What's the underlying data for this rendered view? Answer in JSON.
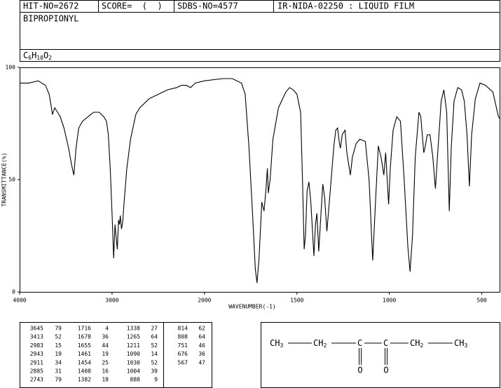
{
  "header": {
    "hit_no": "HIT-NO=2672",
    "score": "SCORE=  (  )",
    "sdbs_no": "SDBS-NO=4577",
    "method": "IR-NIDA-02250 : LIQUID FILM",
    "name": "BIPROPIONYL",
    "formula": [
      "C",
      "6",
      "H",
      "10",
      "O",
      "2"
    ]
  },
  "chart_data": {
    "type": "line",
    "xlabel": "WAVENUMBER(-1)",
    "ylabel": "TRANSMITTANCE(%)",
    "xlim": [
      4000,
      400
    ],
    "xticks": [
      4000,
      3000,
      2000,
      1500,
      1000,
      500
    ],
    "ylim": [
      0,
      100
    ],
    "yticks": [
      0,
      50,
      100
    ],
    "color": "#000000",
    "grid": false,
    "x": [
      4000,
      3900,
      3800,
      3720,
      3680,
      3660,
      3645,
      3620,
      3590,
      3560,
      3520,
      3470,
      3440,
      3413,
      3390,
      3360,
      3320,
      3260,
      3200,
      3140,
      3090,
      3060,
      3040,
      3020,
      3000,
      2983,
      2968,
      2943,
      2930,
      2920,
      2911,
      2898,
      2885,
      2870,
      2840,
      2800,
      2743,
      2700,
      2600,
      2500,
      2400,
      2300,
      2250,
      2200,
      2150,
      2100,
      2000,
      1900,
      1850,
      1800,
      1780,
      1760,
      1740,
      1725,
      1716,
      1705,
      1690,
      1678,
      1668,
      1660,
      1655,
      1645,
      1630,
      1600,
      1560,
      1540,
      1520,
      1500,
      1480,
      1470,
      1461,
      1454,
      1445,
      1435,
      1425,
      1408,
      1400,
      1392,
      1382,
      1370,
      1360,
      1350,
      1338,
      1320,
      1300,
      1290,
      1280,
      1270,
      1265,
      1255,
      1240,
      1230,
      1211,
      1200,
      1180,
      1160,
      1130,
      1110,
      1090,
      1075,
      1060,
      1045,
      1030,
      1020,
      1004,
      995,
      980,
      960,
      940,
      920,
      900,
      888,
      875,
      860,
      840,
      830,
      814,
      808,
      795,
      780,
      765,
      751,
      740,
      720,
      705,
      690,
      676,
      665,
      650,
      630,
      610,
      595,
      580,
      567,
      555,
      535,
      510,
      480,
      440,
      410,
      400
    ],
    "values": [
      93,
      93,
      94,
      92,
      88,
      83,
      79,
      82,
      80,
      78,
      73,
      64,
      57,
      52,
      64,
      73,
      76,
      78,
      80,
      80,
      78,
      76,
      70,
      55,
      35,
      15,
      30,
      19,
      32,
      30,
      34,
      28,
      31,
      40,
      55,
      68,
      79,
      82,
      86,
      88,
      90,
      91,
      92,
      92,
      91,
      93,
      94,
      95,
      95,
      93,
      88,
      65,
      35,
      10,
      4,
      15,
      40,
      36,
      45,
      55,
      44,
      50,
      68,
      82,
      89,
      91,
      90,
      88,
      80,
      50,
      19,
      25,
      45,
      49,
      40,
      16,
      30,
      35,
      18,
      35,
      48,
      42,
      27,
      45,
      65,
      72,
      73,
      66,
      64,
      70,
      72,
      62,
      52,
      60,
      66,
      68,
      67,
      50,
      14,
      40,
      65,
      60,
      52,
      62,
      39,
      55,
      72,
      78,
      76,
      50,
      20,
      9,
      25,
      60,
      80,
      78,
      62,
      64,
      70,
      70,
      60,
      46,
      60,
      85,
      90,
      80,
      36,
      65,
      85,
      91,
      90,
      85,
      70,
      47,
      70,
      86,
      93,
      92,
      89,
      78,
      77
    ]
  },
  "peaks": [
    [
      3645,
      79
    ],
    [
      3413,
      52
    ],
    [
      2983,
      15
    ],
    [
      2943,
      19
    ],
    [
      2911,
      34
    ],
    [
      2885,
      31
    ],
    [
      2743,
      79
    ],
    [
      1716,
      4
    ],
    [
      1678,
      36
    ],
    [
      1655,
      44
    ],
    [
      1461,
      19
    ],
    [
      1454,
      25
    ],
    [
      1408,
      16
    ],
    [
      1382,
      18
    ],
    [
      1338,
      27
    ],
    [
      1265,
      64
    ],
    [
      1211,
      52
    ],
    [
      1090,
      14
    ],
    [
      1030,
      52
    ],
    [
      1004,
      39
    ],
    [
      888,
      9
    ],
    [
      814,
      62
    ],
    [
      808,
      64
    ],
    [
      751,
      46
    ],
    [
      676,
      36
    ],
    [
      567,
      47
    ]
  ],
  "structure": {
    "groups": [
      [
        "CH",
        "3"
      ],
      [
        "CH",
        "2"
      ],
      [
        "C",
        ""
      ],
      [
        "C",
        ""
      ],
      [
        "CH",
        "2"
      ],
      [
        "CH",
        "3"
      ]
    ],
    "oxygen": [
      "O",
      "O"
    ]
  }
}
